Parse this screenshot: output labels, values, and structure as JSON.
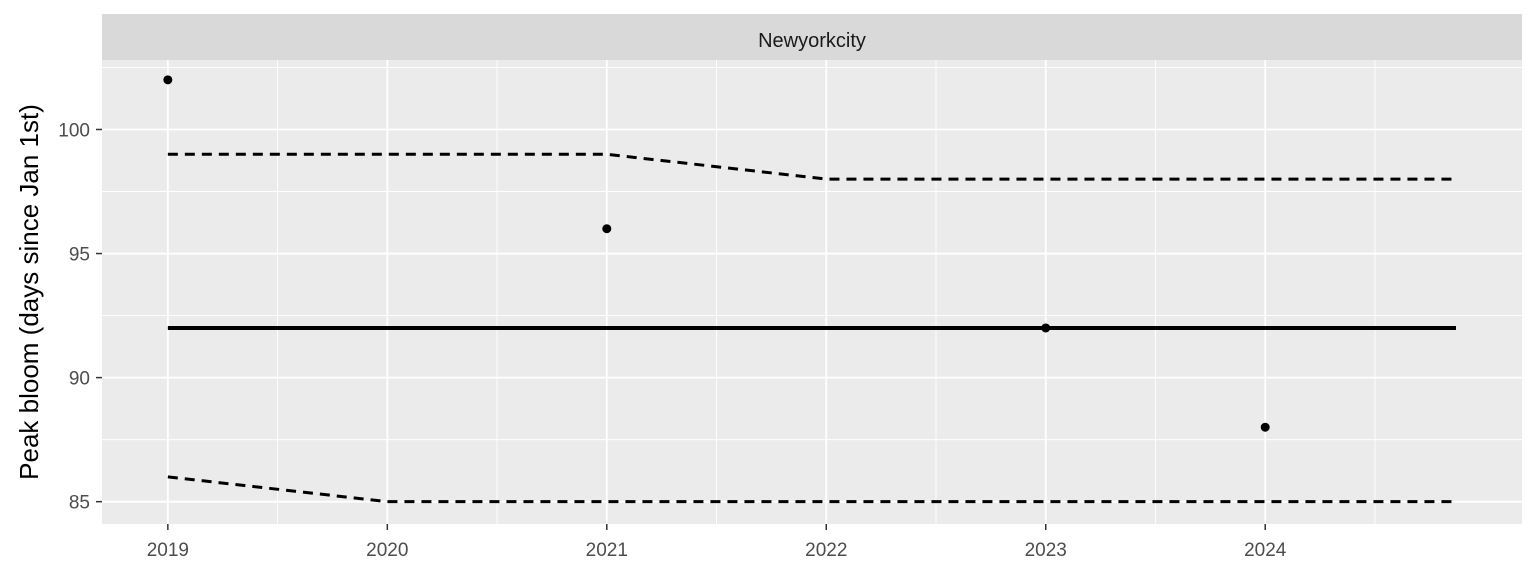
{
  "chart_data": {
    "type": "line",
    "facet_label": "Newyorkcity",
    "ylabel": "Peak bloom (days since Jan 1st)",
    "xlabel": "",
    "x_ticks": [
      "2019",
      "2020",
      "2021",
      "2022",
      "2023",
      "2024"
    ],
    "y_ticks": [
      "85",
      "90",
      "95",
      "100"
    ],
    "xlim": [
      2018.7,
      2025.17
    ],
    "ylim": [
      84.1,
      102.8
    ],
    "grid": true,
    "series": [
      {
        "style": "points",
        "x": [
          2019,
          2021,
          2023,
          2024
        ],
        "y": [
          102,
          96,
          92,
          88
        ]
      },
      {
        "style": "solid",
        "x": [
          2019,
          2025
        ],
        "y": [
          92,
          92
        ]
      },
      {
        "style": "dashed",
        "x": [
          2019,
          2021,
          2022,
          2025
        ],
        "y": [
          99,
          99,
          98,
          98
        ]
      },
      {
        "style": "dashed",
        "x": [
          2019,
          2020,
          2025
        ],
        "y": [
          86,
          85,
          85
        ]
      }
    ]
  }
}
